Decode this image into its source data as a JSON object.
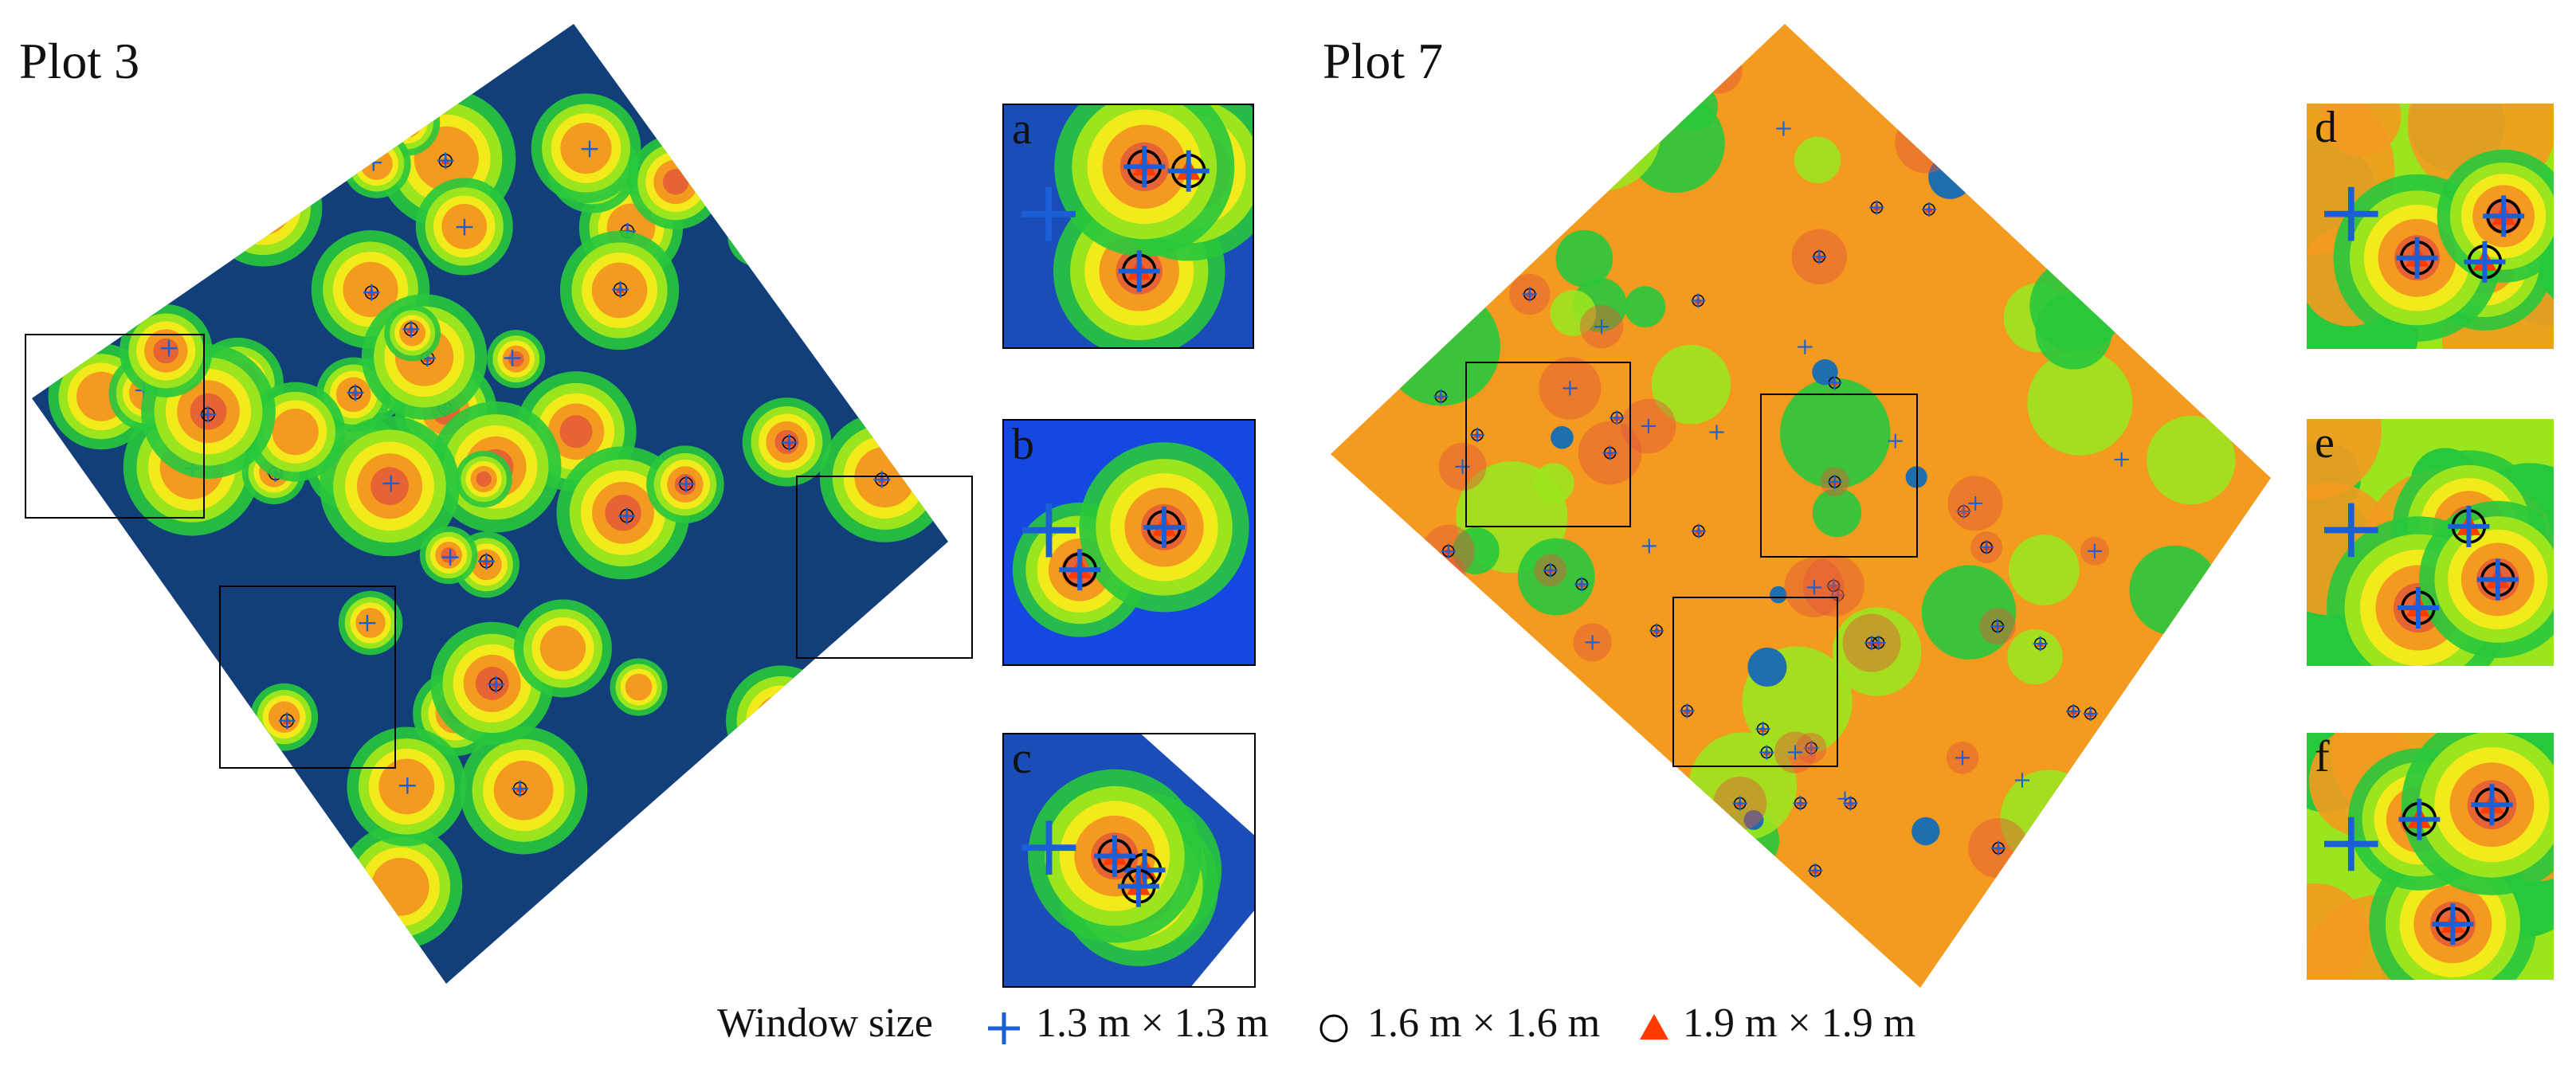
{
  "plots": [
    {
      "title": "Plot 3"
    },
    {
      "title": "Plot 7"
    }
  ],
  "insets": [
    {
      "letter": "a"
    },
    {
      "letter": "b"
    },
    {
      "letter": "c"
    },
    {
      "letter": "d"
    },
    {
      "letter": "e"
    },
    {
      "letter": "f"
    }
  ],
  "legend": {
    "title": "Window size",
    "items": [
      {
        "label": "1.3 m × 1.3 m",
        "symbol": "cross",
        "color": "#1a5fd6"
      },
      {
        "label": "1.6 m × 1.6 m",
        "symbol": "circle",
        "color": "#000000"
      },
      {
        "label": "1.9 m × 1.9 m",
        "symbol": "triangle",
        "color": "#ff3b00"
      }
    ]
  },
  "colors": {
    "ground": "#123f7a",
    "low": "#1f6fae",
    "mid_low": "#28c83c",
    "mid": "#9be51f",
    "yellow": "#f2ea1a",
    "orange": "#f39a1f",
    "high": "#e2553a"
  }
}
